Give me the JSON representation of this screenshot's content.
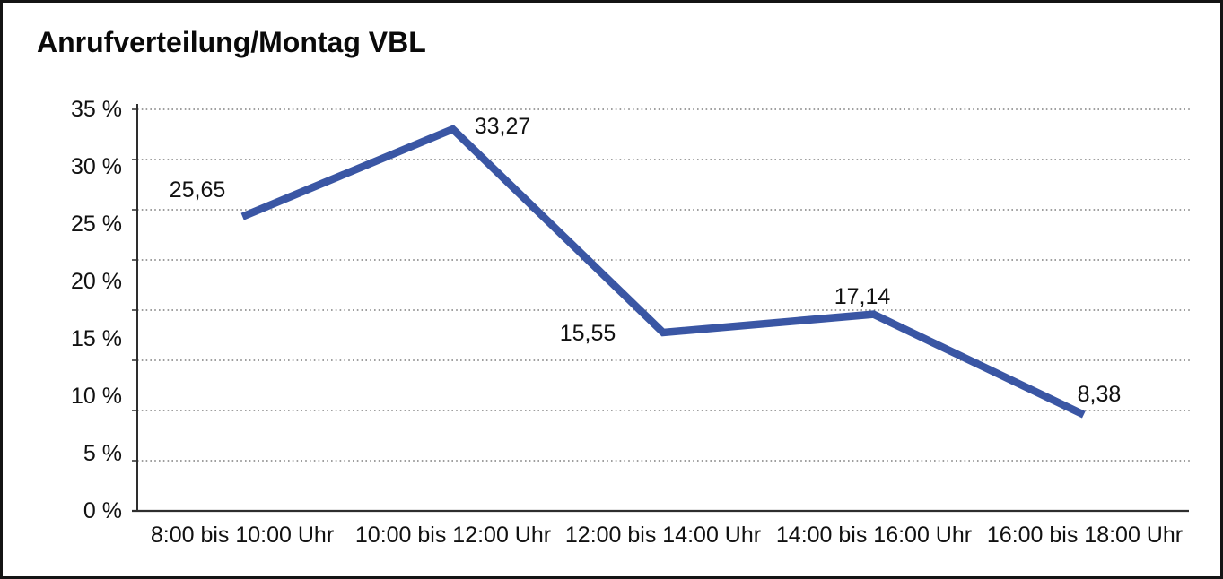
{
  "window": {
    "background": "#ffffff",
    "border_color": "#141414"
  },
  "chart_data": {
    "type": "line",
    "title": "Anrufverteilung/Montag VBL",
    "categories": [
      "8:00 bis 10:00 Uhr",
      "10:00 bis 12:00 Uhr",
      "12:00 bis 14:00 Uhr",
      "14:00 bis 16:00 Uhr",
      "16:00 bis 18:00 Uhr"
    ],
    "values": [
      25.65,
      33.27,
      15.55,
      17.14,
      8.38
    ],
    "point_labels": [
      "25,65",
      "33,27",
      "15,55",
      "17,14",
      "8,38"
    ],
    "y_tick_labels": [
      "35 %",
      "30 %",
      "25 %",
      "20 %",
      "15 %",
      "10 %",
      "5 %",
      "0 %"
    ],
    "ylim": [
      0,
      35
    ],
    "y_unit": "%",
    "xlabel": "",
    "ylabel": "",
    "legend": "none",
    "grid": "horizontal-dotted",
    "dotted_gridline_count": 8,
    "line_color": "#3A56A4",
    "line_width": 8.5,
    "axis_color": "#2e2e2e",
    "grid_color": "#666666",
    "text_color": "#111111"
  }
}
